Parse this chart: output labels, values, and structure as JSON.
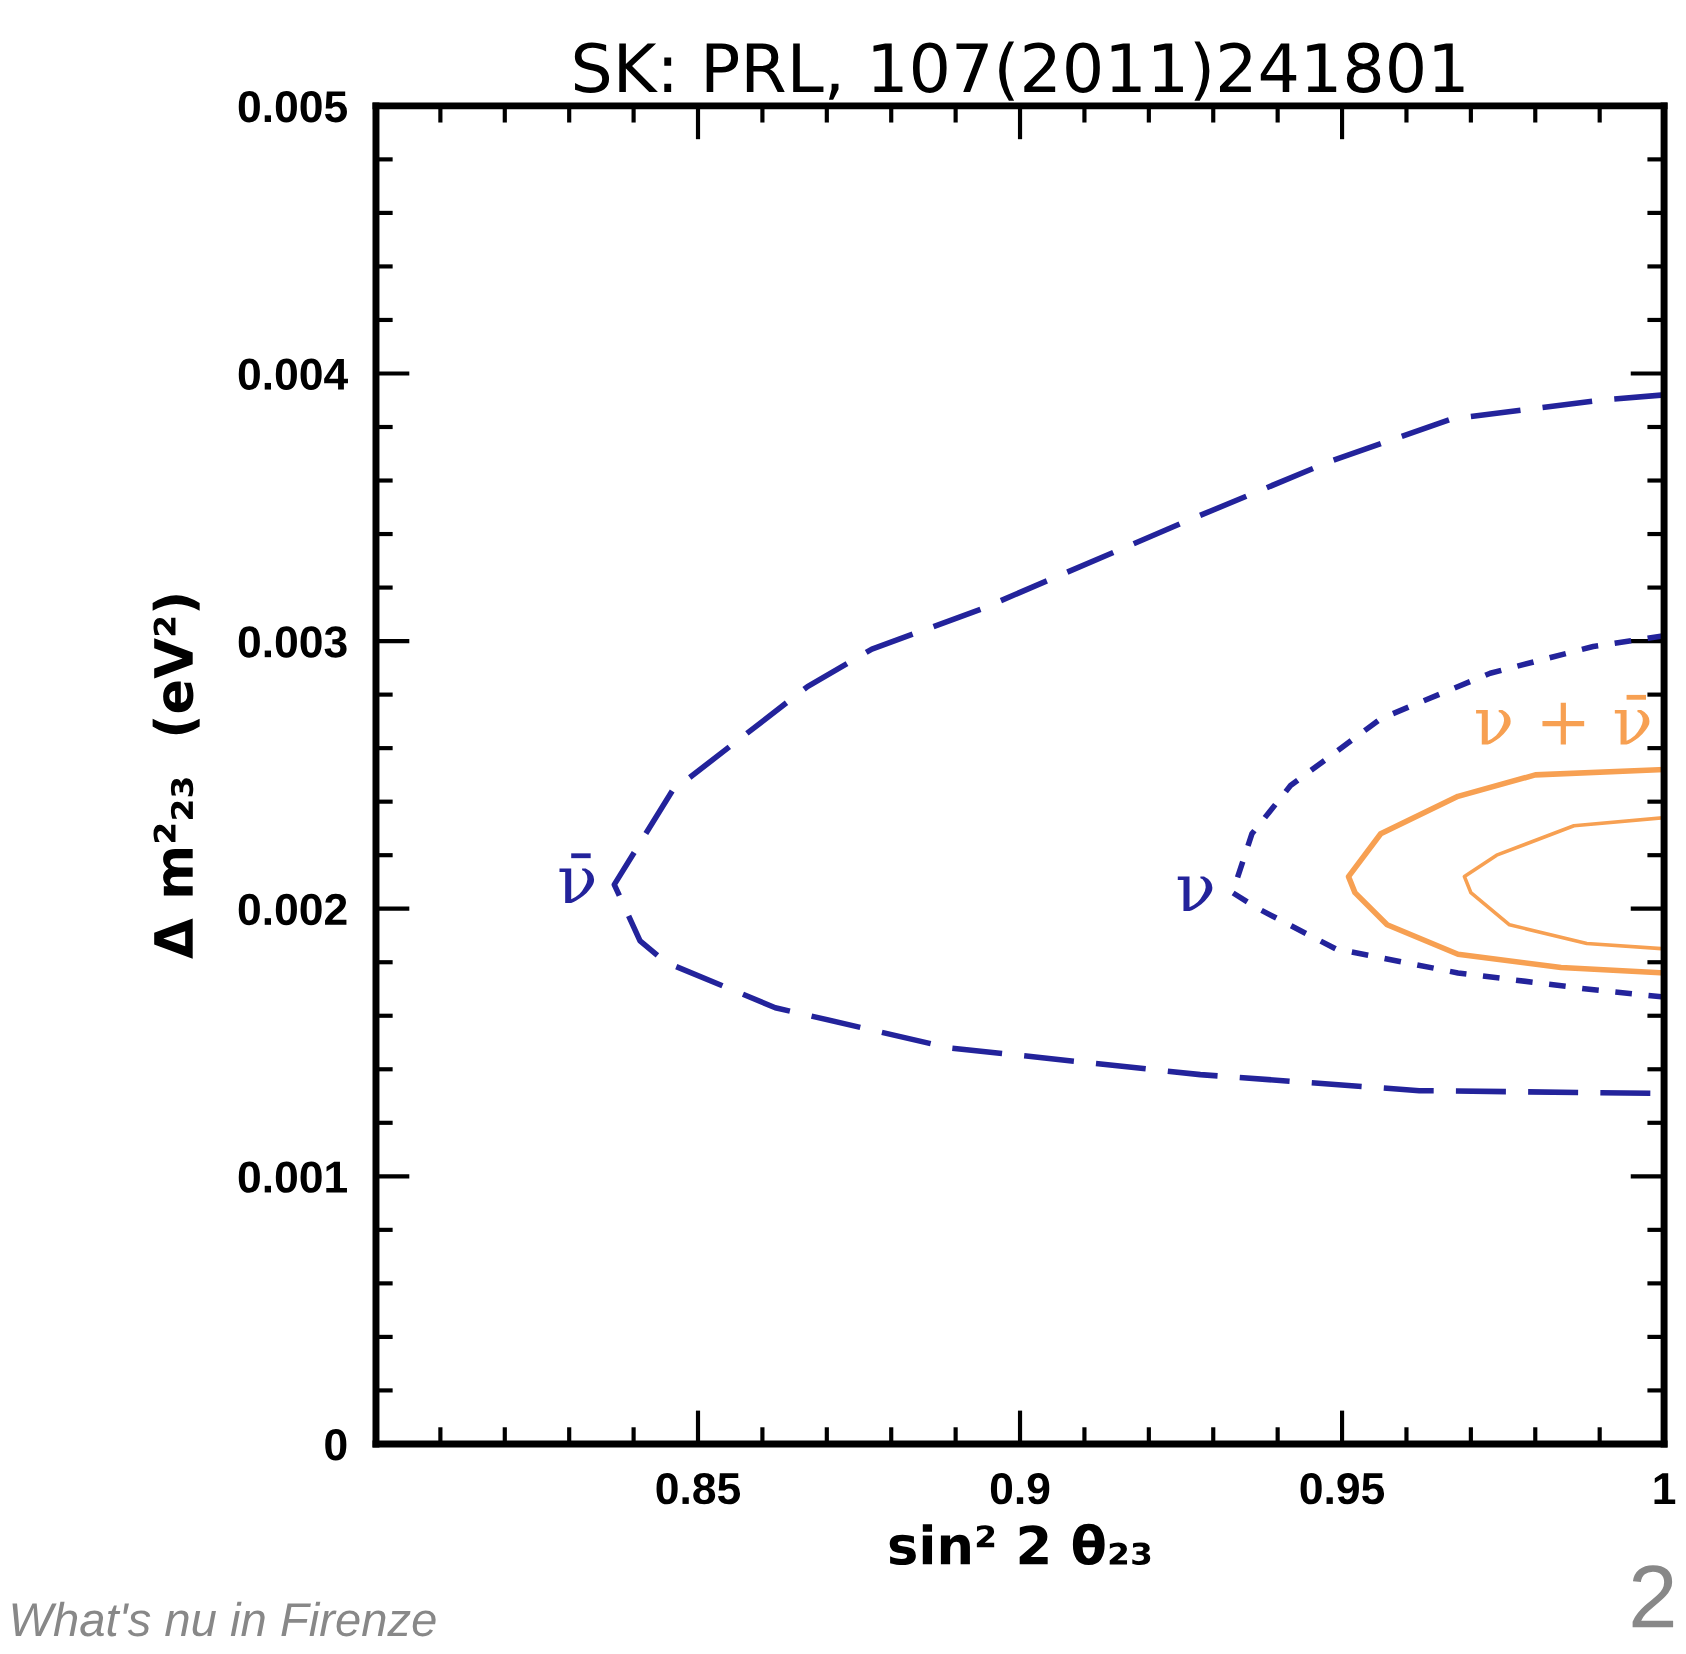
{
  "chart_data": {
    "type": "line",
    "title": "SK: PRL, 107(2011)241801",
    "xlabel": "sin² 2 θ₂₃",
    "ylabel": "Δ m²₂₃  (eV²)",
    "xlim": [
      0.8,
      1.0
    ],
    "ylim": [
      0,
      0.005
    ],
    "xticks": [
      {
        "value": 0.81,
        "label": null
      },
      {
        "value": 0.82,
        "label": null
      },
      {
        "value": 0.83,
        "label": null
      },
      {
        "value": 0.84,
        "label": null
      },
      0.85,
      {
        "value": 0.86,
        "label": null
      },
      {
        "value": 0.87,
        "label": null
      },
      {
        "value": 0.88,
        "label": null
      },
      {
        "value": 0.89,
        "label": null
      },
      0.9,
      {
        "value": 0.91,
        "label": null
      },
      {
        "value": 0.92,
        "label": null
      },
      {
        "value": 0.93,
        "label": null
      },
      {
        "value": 0.94,
        "label": null
      },
      0.95,
      {
        "value": 0.96,
        "label": null
      },
      {
        "value": 0.97,
        "label": null
      },
      {
        "value": 0.98,
        "label": null
      },
      {
        "value": 0.99,
        "label": null
      },
      {
        "value": 1.0,
        "label": "1"
      }
    ],
    "yticks": [
      0,
      {
        "value": 0.0002,
        "label": null
      },
      {
        "value": 0.0004,
        "label": null
      },
      {
        "value": 0.0006,
        "label": null
      },
      {
        "value": 0.0008,
        "label": null
      },
      0.001,
      {
        "value": 0.0012,
        "label": null
      },
      {
        "value": 0.0014,
        "label": null
      },
      {
        "value": 0.0016,
        "label": null
      },
      {
        "value": 0.0018,
        "label": null
      },
      0.002,
      {
        "value": 0.0022,
        "label": null
      },
      {
        "value": 0.0024,
        "label": null
      },
      {
        "value": 0.0026,
        "label": null
      },
      {
        "value": 0.0028,
        "label": null
      },
      0.003,
      {
        "value": 0.0032,
        "label": null
      },
      {
        "value": 0.0034,
        "label": null
      },
      {
        "value": 0.0036,
        "label": null
      },
      {
        "value": 0.0038,
        "label": null
      },
      0.004,
      {
        "value": 0.0042,
        "label": null
      },
      {
        "value": 0.0044,
        "label": null
      },
      {
        "value": 0.0046,
        "label": null
      },
      {
        "value": 0.0048,
        "label": null
      },
      0.005
    ],
    "grid": false,
    "legend": false,
    "marker": "none",
    "series": [
      {
        "name": "ν̄",
        "color": "#23239b",
        "line_style": "dashed",
        "x": [
          1.0,
          0.99,
          0.967,
          0.948,
          0.926,
          0.894,
          0.877,
          0.867,
          0.846,
          0.837,
          0.841,
          0.845,
          0.862,
          0.889,
          0.928,
          0.962,
          1.0
        ],
        "values": [
          0.00392,
          0.0039,
          0.00383,
          0.00367,
          0.00345,
          0.00312,
          0.00297,
          0.00283,
          0.00244,
          0.00209,
          0.00188,
          0.0018,
          0.00163,
          0.00148,
          0.00138,
          0.00132,
          0.00131
        ]
      },
      {
        "name": "ν",
        "color": "#23239b",
        "line_style": "dotted",
        "x": [
          1.0,
          0.989,
          0.973,
          0.956,
          0.942,
          0.936,
          0.933,
          0.937,
          0.949,
          0.968,
          0.988,
          1.0
        ],
        "values": [
          0.00302,
          0.00298,
          0.00288,
          0.00271,
          0.00246,
          0.00228,
          0.00206,
          0.002,
          0.00185,
          0.00176,
          0.0017,
          0.00167
        ]
      },
      {
        "name": "ν + ν̄",
        "color": "#f7a052",
        "line_style": "solid",
        "x": [
          1.0,
          0.98,
          0.968,
          0.956,
          0.951,
          0.952,
          0.957,
          0.968,
          0.984,
          1.0
        ],
        "values": [
          0.00252,
          0.0025,
          0.00242,
          0.00228,
          0.00212,
          0.00206,
          0.00194,
          0.00183,
          0.00178,
          0.00176
        ]
      },
      {
        "color": "#f7a052",
        "line_style": "solid",
        "x": [
          1.0,
          0.986,
          0.974,
          0.969,
          0.97,
          0.976,
          0.988,
          1.0
        ],
        "values": [
          0.00234,
          0.00231,
          0.0022,
          0.00212,
          0.00206,
          0.00194,
          0.00187,
          0.00185
        ]
      }
    ],
    "annotations": [
      "What's nu in Firenze",
      "2"
    ]
  }
}
